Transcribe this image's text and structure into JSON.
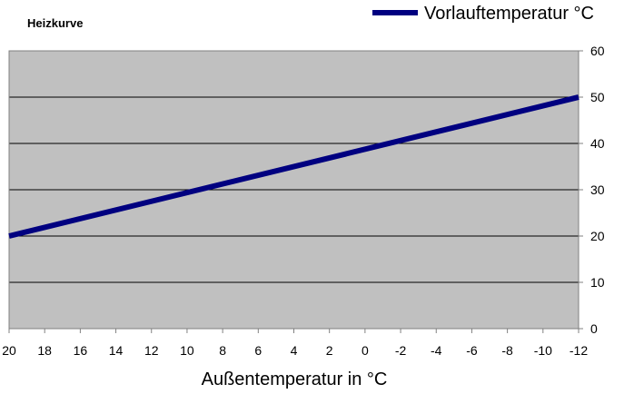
{
  "chart_data": {
    "type": "line",
    "title": "Heizkurve",
    "xlabel": "Außentemperatur in °C",
    "ylabel": "",
    "x_reversed": true,
    "xlim": [
      20,
      -12
    ],
    "ylim": [
      0,
      60
    ],
    "x_ticks": [
      20,
      18,
      16,
      14,
      12,
      10,
      8,
      6,
      4,
      2,
      0,
      -2,
      -4,
      -6,
      -8,
      -10,
      -12
    ],
    "y_ticks": [
      0,
      10,
      20,
      30,
      40,
      50,
      60
    ],
    "y_axis_side": "right",
    "grid": "horizontal",
    "plot_background": "#c0c0c0",
    "legend_position": "top-right",
    "series": [
      {
        "name": "Vorlauftemperatur °C",
        "color": "#000080",
        "x": [
          20,
          -12
        ],
        "y": [
          20,
          50
        ]
      }
    ]
  }
}
